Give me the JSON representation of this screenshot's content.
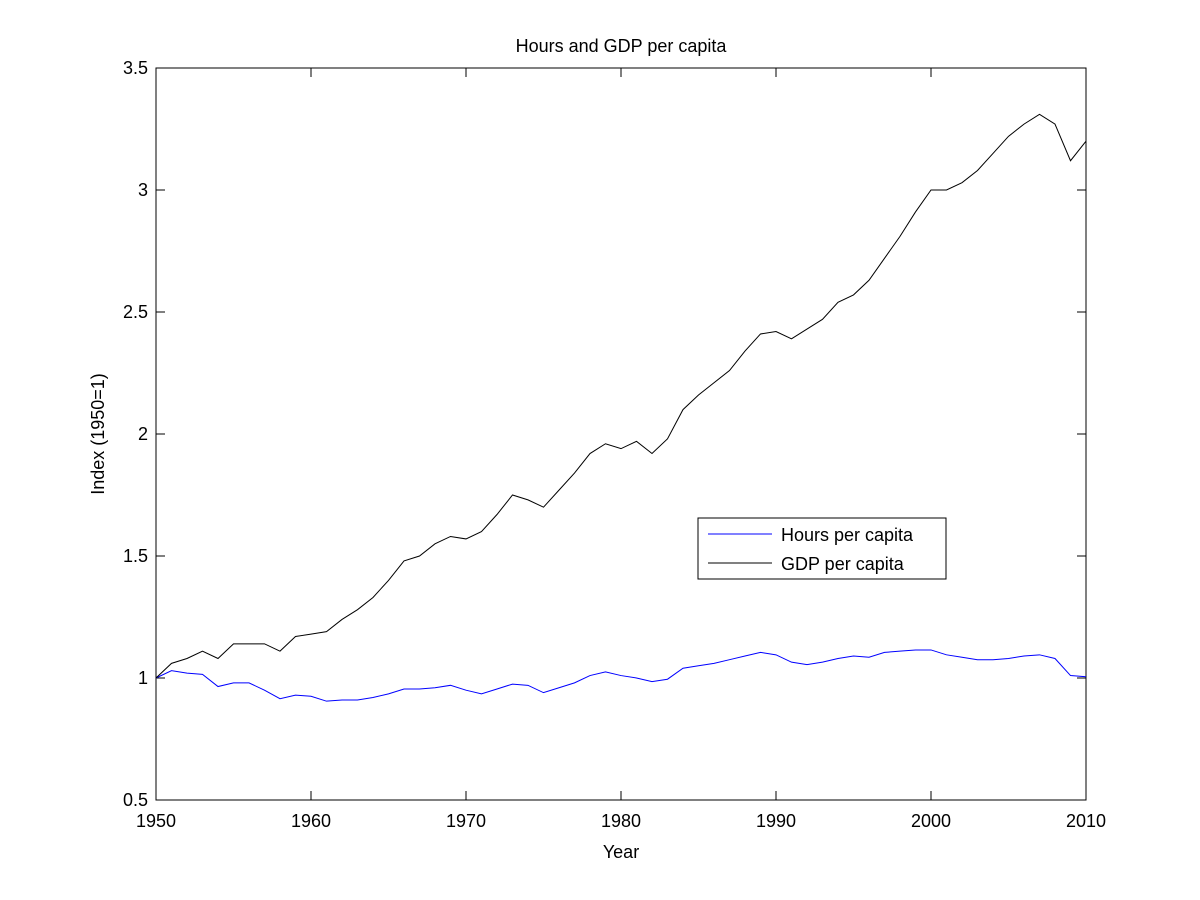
{
  "chart_data": {
    "type": "line",
    "title": "Hours and GDP per capita",
    "xlabel": "Year",
    "ylabel": "Index (1950=1)",
    "xlim": [
      1950,
      2010
    ],
    "ylim": [
      0.5,
      3.5
    ],
    "xticks": [
      1950,
      1960,
      1970,
      1980,
      1990,
      2000,
      2010
    ],
    "yticks": [
      0.5,
      1,
      1.5,
      2,
      2.5,
      3,
      3.5
    ],
    "ytick_labels": [
      "0.5",
      "1",
      "1.5",
      "2",
      "2.5",
      "3",
      "3.5"
    ],
    "grid": false,
    "legend_position": "center-right",
    "x": [
      1950,
      1951,
      1952,
      1953,
      1954,
      1955,
      1956,
      1957,
      1958,
      1959,
      1960,
      1961,
      1962,
      1963,
      1964,
      1965,
      1966,
      1967,
      1968,
      1969,
      1970,
      1971,
      1972,
      1973,
      1974,
      1975,
      1976,
      1977,
      1978,
      1979,
      1980,
      1981,
      1982,
      1983,
      1984,
      1985,
      1986,
      1987,
      1988,
      1989,
      1990,
      1991,
      1992,
      1993,
      1994,
      1995,
      1996,
      1997,
      1998,
      1999,
      2000,
      2001,
      2002,
      2003,
      2004,
      2005,
      2006,
      2007,
      2008,
      2009,
      2010
    ],
    "series": [
      {
        "name": "Hours per capita",
        "color": "#0000ff",
        "values": [
          1.0,
          1.03,
          1.02,
          1.015,
          0.965,
          0.98,
          0.98,
          0.95,
          0.915,
          0.93,
          0.925,
          0.905,
          0.91,
          0.91,
          0.92,
          0.935,
          0.955,
          0.955,
          0.96,
          0.97,
          0.95,
          0.935,
          0.955,
          0.975,
          0.97,
          0.94,
          0.96,
          0.98,
          1.01,
          1.025,
          1.01,
          1.0,
          0.985,
          0.995,
          1.04,
          1.05,
          1.06,
          1.075,
          1.09,
          1.105,
          1.095,
          1.065,
          1.055,
          1.065,
          1.08,
          1.09,
          1.085,
          1.105,
          1.11,
          1.115,
          1.115,
          1.095,
          1.085,
          1.075,
          1.075,
          1.08,
          1.09,
          1.095,
          1.08,
          1.01,
          1.005
        ]
      },
      {
        "name": "GDP per capita",
        "color": "#000000",
        "values": [
          1.0,
          1.06,
          1.08,
          1.11,
          1.08,
          1.14,
          1.14,
          1.14,
          1.11,
          1.17,
          1.18,
          1.19,
          1.24,
          1.28,
          1.33,
          1.4,
          1.48,
          1.5,
          1.55,
          1.58,
          1.57,
          1.6,
          1.67,
          1.75,
          1.73,
          1.7,
          1.77,
          1.84,
          1.92,
          1.96,
          1.94,
          1.97,
          1.92,
          1.98,
          2.1,
          2.16,
          2.21,
          2.26,
          2.34,
          2.41,
          2.42,
          2.39,
          2.43,
          2.47,
          2.54,
          2.57,
          2.63,
          2.72,
          2.81,
          2.91,
          3.0,
          3.0,
          3.03,
          3.08,
          3.15,
          3.22,
          3.27,
          3.31,
          3.27,
          3.12,
          3.2
        ]
      }
    ]
  }
}
